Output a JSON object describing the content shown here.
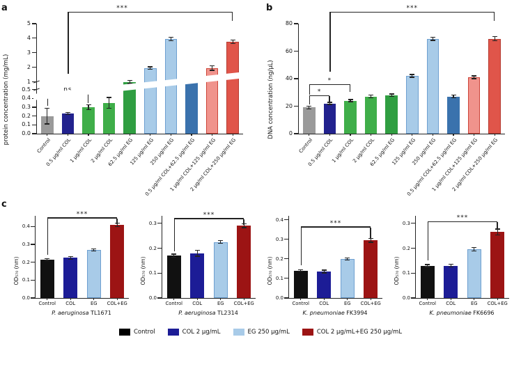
{
  "figure": {
    "panels": [
      {
        "letter": "a"
      },
      {
        "letter": "b"
      },
      {
        "letter": "c"
      }
    ]
  },
  "legend": {
    "items": [
      {
        "label": "Control",
        "color": "#000000"
      },
      {
        "label": "COL 2 µg/mL",
        "color": "#1c1c96"
      },
      {
        "label": "EG 250 µg/mL",
        "color": "#a8cbe8"
      },
      {
        "label": "COL 2 µg/mL+EG 250 µg/mL",
        "color": "#9c1414"
      }
    ]
  },
  "chart_data": [
    {
      "id": "protein-concentration",
      "type": "bar",
      "ylabel": "protein concentration (mg/mL)",
      "categories": [
        "Control",
        "0.5 µg/ml COL",
        "1 µg/ml COL",
        "2 µg/ml COL",
        "62.5 µg/ml EG",
        "125 µg/ml EG",
        "250 µg/ml EG",
        "0.5 µg/ml COL+62.5 µg/ml EG",
        "1 µg/ml COL+125 µg/ml EG",
        "2 µg/ml COL+250 µg/ml EG"
      ],
      "values": [
        0.2,
        0.23,
        0.3,
        0.35,
        1.0,
        1.95,
        3.95,
        1.1,
        1.95,
        3.75
      ],
      "errors": [
        0.09,
        0.01,
        0.03,
        0.06,
        0.1,
        0.08,
        0.12,
        0.05,
        0.15,
        0.12
      ],
      "colors": [
        "#9a9a9a",
        "#22228e",
        "#3fae49",
        "#3fae49",
        "#2f9e41",
        "#a8cbe8",
        "#a8cbe8",
        "#3a72ad",
        "#f0938c",
        "#e0554a"
      ],
      "edges": [
        null,
        null,
        null,
        null,
        null,
        "#6d9fd0",
        "#6d9fd0",
        null,
        "#cc4438",
        "#b53a30"
      ],
      "yticks": [
        {
          "v": 0,
          "label": "0.0"
        },
        {
          "v": 0.1,
          "label": "0.1"
        },
        {
          "v": 0.2,
          "label": "0.2"
        },
        {
          "v": 0.3,
          "label": "0.3"
        },
        {
          "v": 0.4,
          "label": "0.4"
        },
        {
          "v": 0.5,
          "label": "0.5"
        },
        {
          "v": 1,
          "label": "1"
        },
        {
          "v": 2,
          "label": "2"
        },
        {
          "v": 3,
          "label": "3"
        },
        {
          "v": 4,
          "label": "4"
        },
        {
          "v": 5,
          "label": "5"
        }
      ],
      "scale": {
        "type": "broken",
        "lower": [
          0,
          0.5
        ],
        "upper": [
          1,
          5
        ],
        "lower_frac": 0.4,
        "gap_frac": 0.07
      },
      "annotations": [
        {
          "label": "ns",
          "x1": 0,
          "x2": 2,
          "y": 0.36,
          "d1": 17,
          "d2": 13,
          "lx": 0.5
        },
        {
          "label": "***",
          "x1": 1,
          "x2": 9,
          "y": 1.1,
          "d1": 88,
          "d2": 12,
          "lx": 0.33
        }
      ]
    },
    {
      "id": "dna-concentration",
      "type": "bar",
      "ylabel": "DNA concentration (ng/µL)",
      "categories": [
        "Control",
        "0.5 µg/ml COL",
        "1 µg/ml COL",
        "2 µg/ml COL",
        "62.5 µg/ml EG",
        "125 µg/ml EG",
        "250 µg/ml EG",
        "0.5 µg/ml COL+62.5 µg/ml EG",
        "1 µg/ml COL+125 µg/ml EG",
        "2 µg/ml COL+250 µg/ml EG"
      ],
      "values": [
        19,
        22,
        24,
        27,
        28,
        42,
        69,
        27,
        41,
        69
      ],
      "errors": [
        1,
        0.8,
        0.8,
        1,
        0.8,
        1,
        1.2,
        1,
        1,
        1.5
      ],
      "colors": [
        "#9a9a9a",
        "#22228e",
        "#3fae49",
        "#3fae49",
        "#2f9e41",
        "#a8cbe8",
        "#a8cbe8",
        "#3a72ad",
        "#f0938c",
        "#e0554a"
      ],
      "edges": [
        null,
        null,
        null,
        null,
        null,
        "#6d9fd0",
        "#6d9fd0",
        null,
        "#cc4438",
        "#b53a30"
      ],
      "yticks": [
        {
          "v": 0,
          "label": "0"
        },
        {
          "v": 20,
          "label": "20"
        },
        {
          "v": 40,
          "label": "40"
        },
        {
          "v": 60,
          "label": "60"
        },
        {
          "v": 80,
          "label": "80"
        }
      ],
      "scale": {
        "type": "linear",
        "max": 80
      },
      "annotations": [
        {
          "label": "*",
          "x1": 0,
          "x2": 1,
          "y": 0.34,
          "d1": 12,
          "d2": 9,
          "lx": 0.5
        },
        {
          "label": "*",
          "x1": 0,
          "x2": 2,
          "y": 0.44,
          "d1": 14,
          "d2": 10,
          "lx": 0.5
        },
        {
          "label": "***",
          "x1": 1,
          "x2": 9,
          "y": 1.1,
          "d1": 85,
          "d2": 12,
          "lx": 0.5
        }
      ]
    },
    {
      "id": "pa-tl1671",
      "type": "bar",
      "title": {
        "italic": "P. aeruginosa",
        "rest": "TL1671"
      },
      "ylabel": "OD₅₇₀ (nm)",
      "categories": [
        "Control",
        "COL",
        "EG",
        "COL+EG"
      ],
      "values": [
        0.215,
        0.225,
        0.27,
        0.41
      ],
      "errors": [
        0.006,
        0.008,
        0.006,
        0.01
      ],
      "colors": [
        "#111111",
        "#1c1c96",
        "#a8cbe8",
        "#9c1414"
      ],
      "edges": [
        null,
        null,
        "#6d9fd0",
        null
      ],
      "yticks": [
        {
          "v": 0,
          "label": "0.0"
        },
        {
          "v": 0.1,
          "label": "0.1"
        },
        {
          "v": 0.2,
          "label": "0.2"
        },
        {
          "v": 0.3,
          "label": "0.3"
        },
        {
          "v": 0.4,
          "label": "0.4"
        }
      ],
      "scale": {
        "type": "linear",
        "max": 0.46
      },
      "annotations": [
        {
          "label": "***",
          "x1": 0,
          "x2": 3,
          "y": 0.97,
          "d1": 52,
          "d2": 8,
          "lx": 0.5
        }
      ]
    },
    {
      "id": "pa-tl2314",
      "type": "bar",
      "title": {
        "italic": "P. aeruginosa",
        "rest": "TL2314"
      },
      "ylabel": "OD₅₇₀ (nm)",
      "categories": [
        "Control",
        "COL",
        "EG",
        "COL+EG"
      ],
      "values": [
        0.17,
        0.18,
        0.225,
        0.29
      ],
      "errors": [
        0.006,
        0.012,
        0.006,
        0.008
      ],
      "colors": [
        "#111111",
        "#1c1c96",
        "#a8cbe8",
        "#9c1414"
      ],
      "edges": [
        null,
        null,
        "#6d9fd0",
        null
      ],
      "yticks": [
        {
          "v": 0,
          "label": "0.0"
        },
        {
          "v": 0.1,
          "label": "0.1"
        },
        {
          "v": 0.2,
          "label": "0.2"
        },
        {
          "v": 0.3,
          "label": "0.3"
        }
      ],
      "scale": {
        "type": "linear",
        "max": 0.33
      },
      "annotations": [
        {
          "label": "***",
          "x1": 0,
          "x2": 3,
          "y": 0.96,
          "d1": 46,
          "d2": 8,
          "lx": 0.5
        }
      ]
    },
    {
      "id": "kp-fk3994",
      "type": "bar",
      "title": {
        "italic": "K. pneumoniae",
        "rest": "FK3994"
      },
      "ylabel": "OD₅₇₀ (nm)",
      "categories": [
        "Control",
        "COL",
        "EG",
        "COL+EG"
      ],
      "values": [
        0.14,
        0.135,
        0.2,
        0.295
      ],
      "errors": [
        0.004,
        0.007,
        0.005,
        0.01
      ],
      "colors": [
        "#111111",
        "#1c1c96",
        "#a8cbe8",
        "#9c1414"
      ],
      "edges": [
        null,
        null,
        "#6d9fd0",
        null
      ],
      "yticks": [
        {
          "v": 0,
          "label": "0.0"
        },
        {
          "v": 0.1,
          "label": "0.1"
        },
        {
          "v": 0.2,
          "label": "0.2"
        },
        {
          "v": 0.3,
          "label": "0.3"
        },
        {
          "v": 0.4,
          "label": "0.4"
        }
      ],
      "scale": {
        "type": "linear",
        "max": 0.42
      },
      "annotations": [
        {
          "label": "***",
          "x1": 0,
          "x2": 3,
          "y": 0.86,
          "d1": 54,
          "d2": 15,
          "lx": 0.5
        }
      ]
    },
    {
      "id": "kp-fk6696",
      "type": "bar",
      "title": {
        "italic": "K. pneumoniae",
        "rest": "FK6696"
      },
      "ylabel": "OD₅₇₀ (nm)",
      "categories": [
        "Control",
        "COL",
        "EG",
        "COL+EG"
      ],
      "values": [
        0.13,
        0.13,
        0.195,
        0.265
      ],
      "errors": [
        0.004,
        0.005,
        0.007,
        0.012
      ],
      "colors": [
        "#111111",
        "#1c1c96",
        "#a8cbe8",
        "#9c1414"
      ],
      "edges": [
        null,
        null,
        "#6d9fd0",
        null
      ],
      "yticks": [
        {
          "v": 0,
          "label": "0.0"
        },
        {
          "v": 0.1,
          "label": "0.1"
        },
        {
          "v": 0.2,
          "label": "0.2"
        },
        {
          "v": 0.3,
          "label": "0.3"
        }
      ],
      "scale": {
        "type": "linear",
        "max": 0.33
      },
      "annotations": [
        {
          "label": "***",
          "x1": 0,
          "x2": 3,
          "y": 0.92,
          "d1": 55,
          "d2": 10,
          "lx": 0.5
        }
      ]
    }
  ]
}
